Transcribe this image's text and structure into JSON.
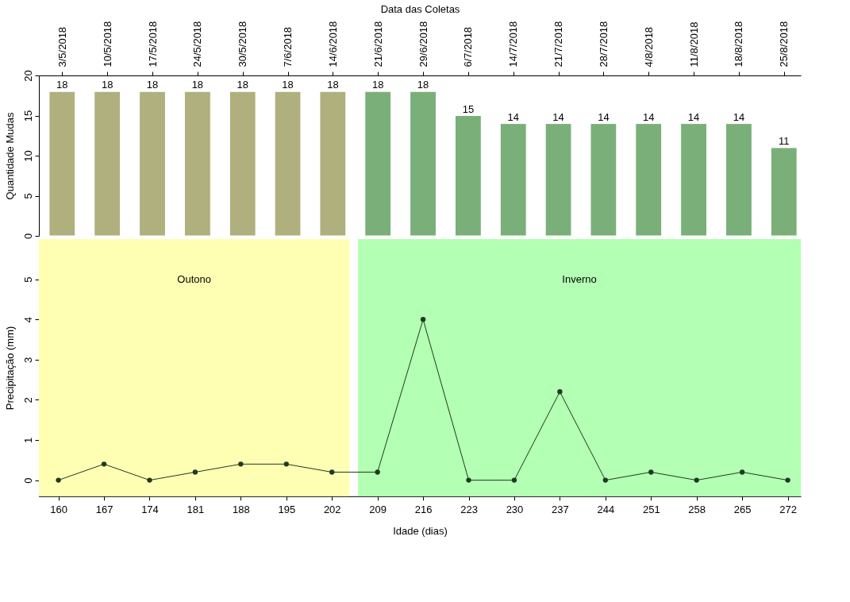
{
  "chart_data": [
    {
      "type": "bar",
      "ylabel": "Quantidade Mudas",
      "x2label": "Data das Coletas",
      "categories": [
        "3/5/2018",
        "10/5/2018",
        "17/5/2018",
        "24/5/2018",
        "30/5/2018",
        "7/6/2018",
        "14/6/2018",
        "21/6/2018",
        "29/6/2018",
        "6/7/2018",
        "14/7/2018",
        "21/7/2018",
        "28/7/2018",
        "4/8/2018",
        "11/8/2018",
        "18/8/2018",
        "25/8/2018"
      ],
      "values": [
        18,
        18,
        18,
        18,
        18,
        18,
        18,
        18,
        18,
        15,
        14,
        14,
        14,
        14,
        14,
        14,
        11
      ],
      "data_labels": true,
      "colors": [
        "#b0b07e",
        "#b0b07e",
        "#b0b07e",
        "#b0b07e",
        "#b0b07e",
        "#b0b07e",
        "#b0b07e",
        "#7aaf7a",
        "#7aaf7a",
        "#7aaf7a",
        "#7aaf7a",
        "#7aaf7a",
        "#7aaf7a",
        "#7aaf7a",
        "#7aaf7a",
        "#7aaf7a",
        "#7aaf7a"
      ],
      "ylim": [
        0,
        20
      ],
      "yticks": [
        0,
        5,
        10,
        15,
        20
      ],
      "grid": false
    },
    {
      "type": "line",
      "xlabel": "Idade (dias)",
      "ylabel": "Precipitação (mm)",
      "x": [
        160,
        167,
        174,
        181,
        188,
        195,
        202,
        209,
        216,
        223,
        230,
        237,
        244,
        251,
        258,
        265,
        272
      ],
      "series": [
        {
          "color": "#1f3a1f",
          "values": [
            0,
            0.4,
            0,
            0.2,
            0.4,
            0.4,
            0.2,
            0.2,
            4,
            0,
            0,
            2.2,
            0,
            0.2,
            0,
            0.2,
            0
          ]
        }
      ],
      "xlim": [
        157,
        274
      ],
      "ylim": [
        -0.4,
        6
      ],
      "xticks": [
        160,
        167,
        174,
        181,
        188,
        195,
        202,
        209,
        216,
        223,
        230,
        237,
        244,
        251,
        258,
        265,
        272
      ],
      "yticks": [
        0,
        1,
        2,
        3,
        4,
        5
      ],
      "grid": false,
      "marker": "circle",
      "line_style": "solid",
      "bands": [
        {
          "axis": "x",
          "from": 157,
          "to": 204.7,
          "label": "Outono",
          "color": "#ffffb3"
        },
        {
          "axis": "x",
          "from": 206,
          "to": 274,
          "label": "Inverno",
          "color": "#b3ffb3"
        }
      ]
    }
  ]
}
